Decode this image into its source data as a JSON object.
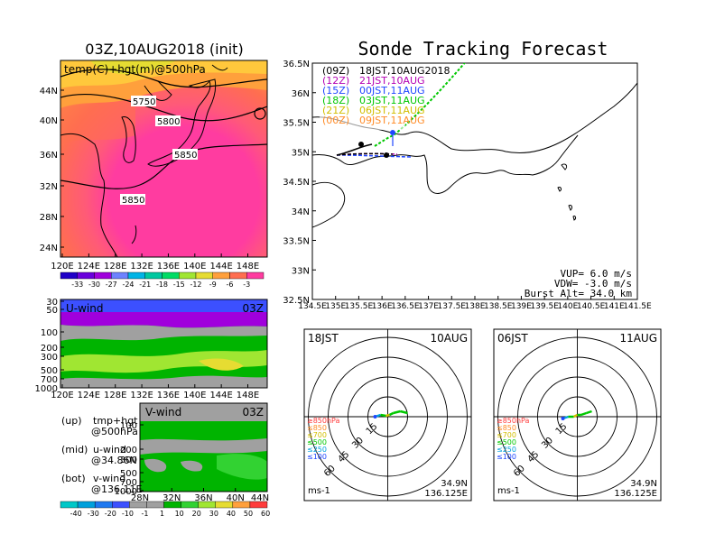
{
  "map_panel": {
    "title": "03Z,10AUG2018 (init)",
    "subtitle": "temp(C)+hgt(m)@500hPa",
    "lat_ticks": [
      "44N",
      "40N",
      "36N",
      "32N",
      "28N",
      "24N"
    ],
    "lon_ticks": [
      "120E",
      "124E",
      "128E",
      "132E",
      "136E",
      "140E",
      "144E",
      "148E"
    ],
    "contour_labels": [
      "5750",
      "5800",
      "5850",
      "5850"
    ],
    "colorbar_labels": [
      "-33",
      "-30",
      "-27",
      "-24",
      "-21",
      "-18",
      "-15",
      "-12",
      "-9",
      "-6",
      "-3"
    ],
    "colorbar_colors": [
      "#1f00c8",
      "#6a00dc",
      "#a000dc",
      "#6e82ff",
      "#00b4e6",
      "#00c8a0",
      "#00dc64",
      "#a0e632",
      "#e6dc32",
      "#ffa03c",
      "#ff6e50",
      "#ff3ca0"
    ]
  },
  "uwind_panel": {
    "label": "U-wind",
    "time": "03Z",
    "p_ticks": [
      "30",
      "50",
      "100",
      "200",
      "300",
      "500",
      "700",
      "1000"
    ],
    "lon_ticks": [
      "120E",
      "124E",
      "128E",
      "132E",
      "136E",
      "140E",
      "144E",
      "148E"
    ]
  },
  "vwind_panel": {
    "label": "V-wind",
    "time": "03Z",
    "p_ticks": [
      "100",
      "200",
      "300",
      "500",
      "700",
      "1000"
    ],
    "lat_ticks": [
      "28N",
      "32N",
      "36N",
      "40N",
      "44N"
    ]
  },
  "legend_notes": [
    {
      "head": "(up)",
      "text": "tmp+hgt",
      "sub": "@500hPa"
    },
    {
      "head": "(mid)",
      "text": "u-wind",
      "sub": "@34.86N"
    },
    {
      "head": "(bot)",
      "text": "v-wind",
      "sub": "@136.11E"
    }
  ],
  "wind_colorbar": {
    "labels": [
      "-40",
      "-30",
      "-20",
      "-10",
      "-1",
      "1",
      "10",
      "20",
      "30",
      "40",
      "50",
      "60"
    ],
    "colors": [
      "#00c8c8",
      "#00a0dc",
      "#1e78f0",
      "#3c50ff",
      "#a0a0a0",
      "#a0a0a0",
      "#00b400",
      "#32d232",
      "#a0e632",
      "#e6dc32",
      "#ffa03c",
      "#ff3c3c"
    ]
  },
  "track_panel": {
    "title": "Sonde Tracking Forecast",
    "lat_ticks": [
      "36.5N",
      "36N",
      "35.5N",
      "35N",
      "34.5N",
      "34N",
      "33.5N",
      "33N",
      "32.5N"
    ],
    "lon_ticks": [
      "134.5E",
      "135E",
      "135.5E",
      "136E",
      "136.5E",
      "137E",
      "137.5E",
      "138E",
      "138.5E",
      "139E",
      "139.5E",
      "140E",
      "140.5E",
      "141E",
      "141.5E"
    ],
    "launches": [
      {
        "utc": "(09Z)",
        "local": "18JST,10AUG2018",
        "color": "#000000"
      },
      {
        "utc": "(12Z)",
        "local": "21JST,10AUG",
        "color": "#b400b4"
      },
      {
        "utc": "(15Z)",
        "local": "00JST,11AUG",
        "color": "#1e46ff"
      },
      {
        "utc": "(18Z)",
        "local": "03JST,11AUG",
        "color": "#00c800"
      },
      {
        "utc": "(21Z)",
        "local": "06JST,11AUG",
        "color": "#d2be00"
      },
      {
        "utc": "(00Z)",
        "local": "09JST,11AUG",
        "color": "#ff8c28"
      }
    ],
    "vup": "VUP= 6.0 m/s",
    "vdw": "VDW= -3.0 m/s",
    "burst": "Burst Alt= 34.0 km"
  },
  "hodographs": [
    {
      "time": "18JST",
      "date": "10AUG",
      "lat": "34.9N",
      "lon": "136.125E",
      "unit": "ms-1",
      "ring_labels": [
        "15",
        "30",
        "45",
        "60"
      ],
      "levels": [
        "≥850hPa",
        "≤850",
        "≤700",
        "≤500",
        "≤250",
        "≤100"
      ]
    },
    {
      "time": "06JST",
      "date": "11AUG",
      "lat": "34.9N",
      "lon": "136.125E",
      "unit": "ms-1",
      "ring_labels": [
        "15",
        "30",
        "45",
        "60"
      ],
      "levels": [
        "≥850hPa",
        "≤850",
        "≤700",
        "≤500",
        "≤250",
        "≤100"
      ]
    }
  ],
  "level_colors": [
    "#ff3c3c",
    "#ff8c28",
    "#d2be00",
    "#00c800",
    "#00a0dc",
    "#1e46ff"
  ]
}
